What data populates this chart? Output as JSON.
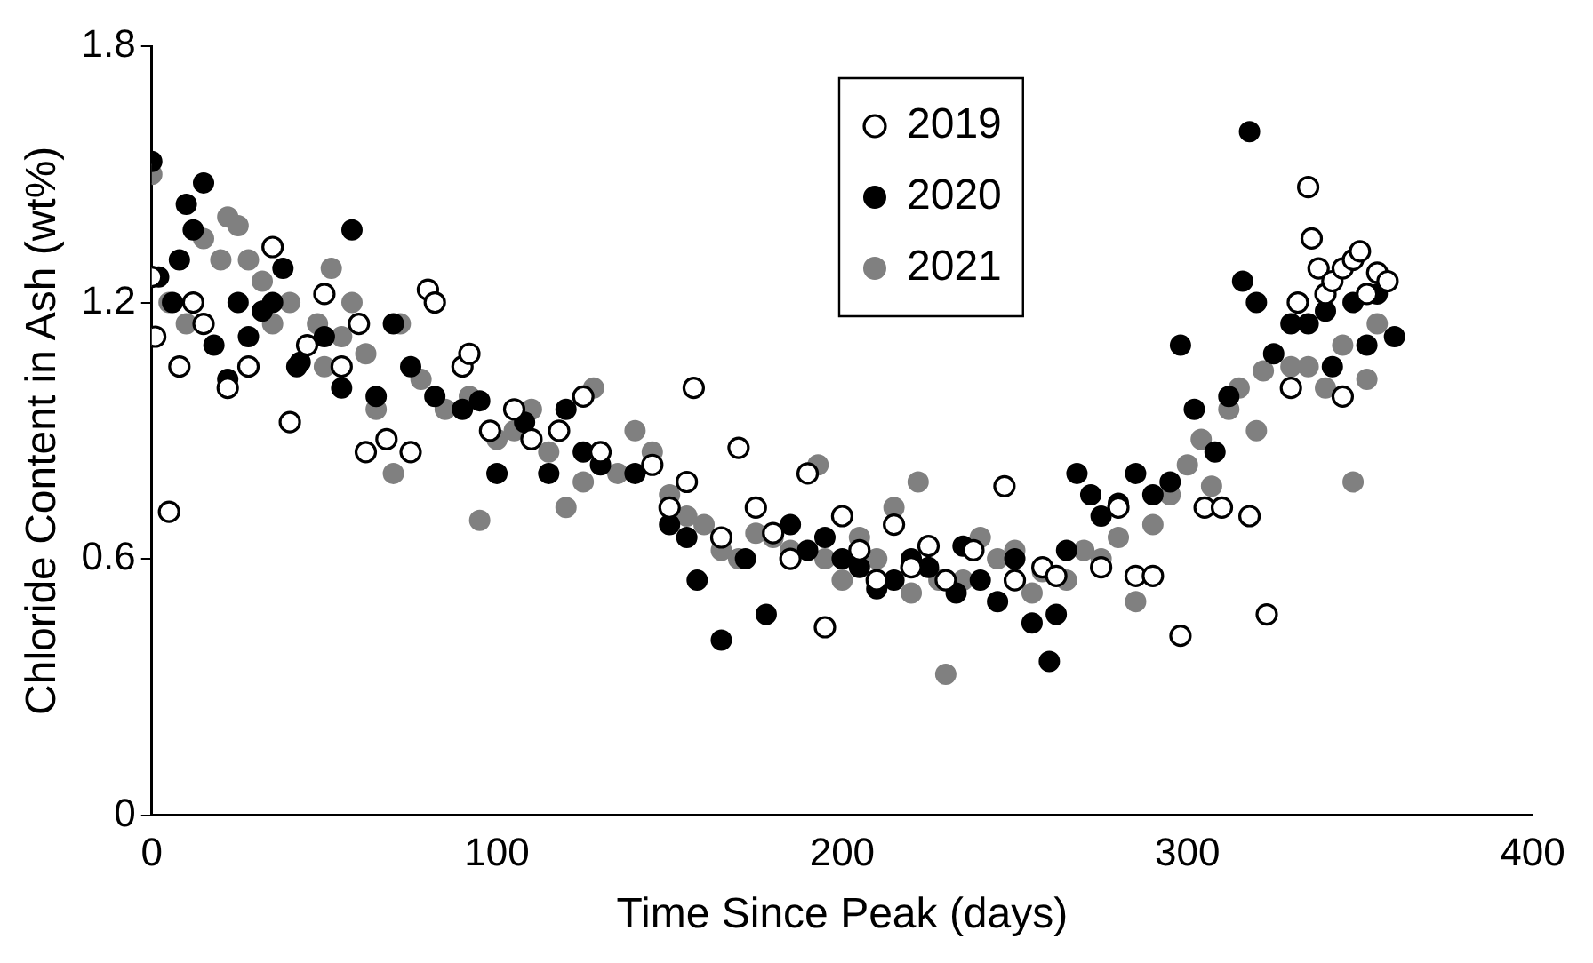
{
  "chart_data": {
    "type": "scatter",
    "xlabel": "Time Since Peak (days)",
    "ylabel": "Chloride Content in Ash (wt%)",
    "xlim": [
      0,
      400
    ],
    "xticks": [
      0,
      100,
      200,
      300,
      400
    ],
    "ylim": [
      0,
      1.8
    ],
    "yticks": [
      0,
      0.6,
      1.2,
      1.8
    ],
    "grid": false,
    "legend": "top",
    "marker": "circle",
    "series": [
      {
        "name": "2019",
        "color": "#ffffff",
        "x": [
          0,
          1,
          5,
          8,
          12,
          15,
          22,
          28,
          35,
          40,
          45,
          50,
          55,
          60,
          62,
          68,
          75,
          80,
          82,
          90,
          92,
          98,
          105,
          110,
          118,
          125,
          130,
          145,
          150,
          155,
          157,
          165,
          170,
          175,
          180,
          185,
          190,
          195,
          200,
          205,
          210,
          215,
          220,
          225,
          230,
          238,
          247,
          250,
          258,
          262,
          275,
          280,
          285,
          290,
          298,
          305,
          310,
          318,
          323,
          330,
          332,
          335,
          336,
          338,
          340,
          342,
          345,
          345,
          348,
          350,
          352,
          355,
          358
        ],
        "values": [
          1.26,
          1.12,
          0.71,
          1.05,
          1.2,
          1.15,
          1.0,
          1.05,
          1.33,
          0.92,
          1.1,
          1.22,
          1.05,
          1.15,
          0.85,
          0.88,
          0.85,
          1.23,
          1.2,
          1.05,
          1.08,
          0.9,
          0.95,
          0.88,
          0.9,
          0.98,
          0.85,
          0.82,
          0.72,
          0.78,
          1.0,
          0.65,
          0.86,
          0.72,
          0.66,
          0.6,
          0.8,
          0.44,
          0.7,
          0.62,
          0.55,
          0.68,
          0.58,
          0.63,
          0.55,
          0.62,
          0.77,
          0.55,
          0.58,
          0.56,
          0.58,
          0.72,
          0.56,
          0.56,
          0.42,
          0.72,
          0.72,
          0.7,
          0.47,
          1.0,
          1.2,
          1.47,
          1.35,
          1.28,
          1.22,
          1.25,
          1.28,
          0.98,
          1.3,
          1.32,
          1.22,
          1.27,
          1.25
        ]
      },
      {
        "name": "2020",
        "color": "#000000",
        "x": [
          0,
          2,
          6,
          8,
          10,
          12,
          15,
          18,
          22,
          25,
          28,
          32,
          35,
          38,
          42,
          43,
          50,
          55,
          58,
          65,
          70,
          75,
          82,
          90,
          95,
          100,
          108,
          115,
          120,
          125,
          130,
          140,
          150,
          155,
          158,
          165,
          172,
          178,
          185,
          190,
          195,
          200,
          205,
          210,
          215,
          220,
          225,
          233,
          235,
          240,
          245,
          250,
          255,
          260,
          262,
          265,
          268,
          272,
          275,
          280,
          285,
          290,
          295,
          298,
          302,
          308,
          312,
          316,
          318,
          320,
          325,
          330,
          335,
          340,
          342,
          348,
          352,
          355,
          360
        ],
        "values": [
          1.53,
          1.26,
          1.2,
          1.3,
          1.43,
          1.37,
          1.48,
          1.1,
          1.02,
          1.2,
          1.12,
          1.18,
          1.2,
          1.28,
          1.05,
          1.06,
          1.12,
          1.0,
          1.37,
          0.98,
          1.15,
          1.05,
          0.98,
          0.95,
          0.97,
          0.8,
          0.92,
          0.8,
          0.95,
          0.85,
          0.82,
          0.8,
          0.68,
          0.65,
          0.55,
          0.41,
          0.6,
          0.47,
          0.68,
          0.62,
          0.65,
          0.6,
          0.58,
          0.53,
          0.55,
          0.6,
          0.58,
          0.52,
          0.63,
          0.55,
          0.5,
          0.6,
          0.45,
          0.36,
          0.47,
          0.62,
          0.8,
          0.75,
          0.7,
          0.73,
          0.8,
          0.75,
          0.78,
          1.1,
          0.95,
          0.85,
          0.98,
          1.25,
          1.6,
          1.2,
          1.08,
          1.15,
          1.15,
          1.18,
          1.05,
          1.2,
          1.1,
          1.22,
          1.12
        ]
      },
      {
        "name": "2021",
        "color": "#808080",
        "x": [
          0,
          5,
          10,
          15,
          20,
          22,
          25,
          28,
          32,
          35,
          40,
          48,
          50,
          52,
          55,
          58,
          62,
          65,
          70,
          72,
          78,
          85,
          92,
          95,
          100,
          105,
          110,
          115,
          120,
          125,
          128,
          135,
          140,
          145,
          150,
          155,
          160,
          165,
          170,
          175,
          180,
          185,
          193,
          195,
          200,
          205,
          210,
          215,
          220,
          222,
          228,
          230,
          235,
          240,
          245,
          250,
          255,
          258,
          265,
          270,
          275,
          280,
          285,
          290,
          295,
          300,
          307,
          304,
          312,
          315,
          320,
          322,
          330,
          335,
          340,
          345,
          348,
          352,
          355
        ],
        "values": [
          1.5,
          1.2,
          1.15,
          1.35,
          1.3,
          1.4,
          1.38,
          1.3,
          1.25,
          1.15,
          1.2,
          1.15,
          1.05,
          1.28,
          1.12,
          1.2,
          1.08,
          0.95,
          0.8,
          1.15,
          1.02,
          0.95,
          0.98,
          0.69,
          0.88,
          0.9,
          0.95,
          0.85,
          0.72,
          0.78,
          1.0,
          0.8,
          0.9,
          0.85,
          0.75,
          0.7,
          0.68,
          0.62,
          0.6,
          0.66,
          0.65,
          0.62,
          0.82,
          0.6,
          0.55,
          0.65,
          0.6,
          0.72,
          0.52,
          0.78,
          0.55,
          0.33,
          0.55,
          0.65,
          0.6,
          0.62,
          0.52,
          0.57,
          0.55,
          0.62,
          0.6,
          0.65,
          0.5,
          0.68,
          0.75,
          0.82,
          0.77,
          0.88,
          0.95,
          1.0,
          0.9,
          1.04,
          1.05,
          1.05,
          1.0,
          1.1,
          0.78,
          1.02,
          1.15
        ]
      }
    ]
  }
}
